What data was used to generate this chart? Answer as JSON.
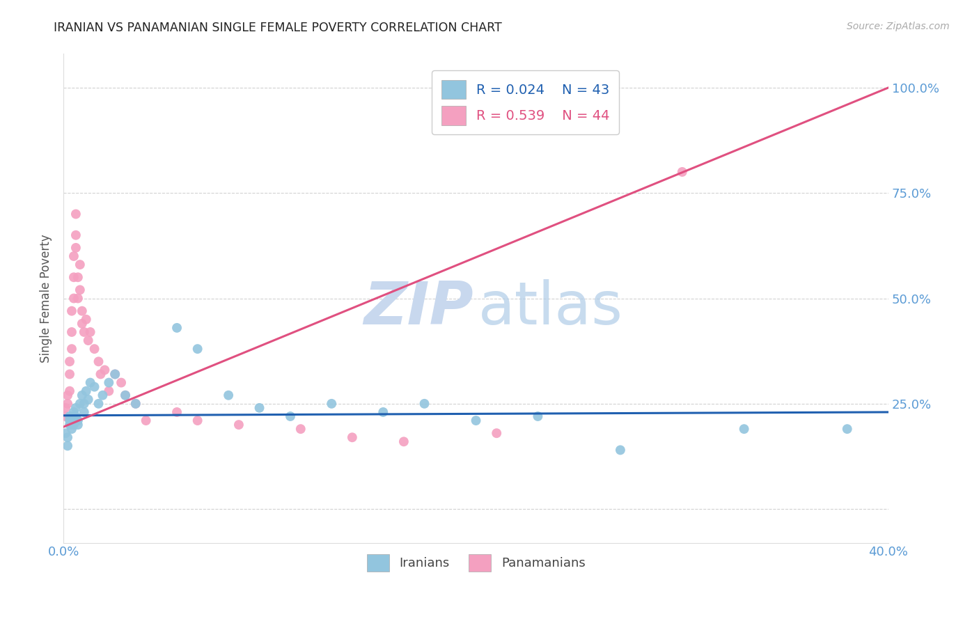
{
  "title": "IRANIAN VS PANAMANIAN SINGLE FEMALE POVERTY CORRELATION CHART",
  "source": "Source: ZipAtlas.com",
  "ylabel": "Single Female Poverty",
  "legend_blue_R": "R = 0.024",
  "legend_blue_N": "N = 43",
  "legend_pink_R": "R = 0.539",
  "legend_pink_N": "N = 44",
  "blue_color": "#92c5de",
  "pink_color": "#f4a0c0",
  "blue_line_color": "#2060b0",
  "pink_line_color": "#e05080",
  "title_color": "#222222",
  "source_color": "#aaaaaa",
  "axis_label_color": "#5b9bd5",
  "right_tick_color": "#5b9bd5",
  "watermark_zip_color": "#c8d8ee",
  "watermark_atlas_color": "#b0cce8",
  "grid_color": "#cccccc",
  "xmin": 0.0,
  "xmax": 0.4,
  "ymin": -0.08,
  "ymax": 1.08,
  "iranians_x": [
    0.001,
    0.002,
    0.002,
    0.003,
    0.003,
    0.003,
    0.004,
    0.004,
    0.004,
    0.005,
    0.005,
    0.005,
    0.006,
    0.006,
    0.007,
    0.007,
    0.008,
    0.009,
    0.01,
    0.01,
    0.011,
    0.012,
    0.013,
    0.015,
    0.017,
    0.019,
    0.022,
    0.025,
    0.03,
    0.035,
    0.055,
    0.065,
    0.08,
    0.095,
    0.11,
    0.13,
    0.155,
    0.175,
    0.2,
    0.23,
    0.27,
    0.33,
    0.38
  ],
  "iranians_y": [
    0.18,
    0.15,
    0.17,
    0.2,
    0.21,
    0.22,
    0.19,
    0.2,
    0.22,
    0.21,
    0.23,
    0.2,
    0.22,
    0.24,
    0.2,
    0.21,
    0.25,
    0.27,
    0.23,
    0.25,
    0.28,
    0.26,
    0.3,
    0.29,
    0.25,
    0.27,
    0.3,
    0.32,
    0.27,
    0.25,
    0.43,
    0.38,
    0.27,
    0.24,
    0.22,
    0.25,
    0.23,
    0.25,
    0.21,
    0.22,
    0.14,
    0.19,
    0.19
  ],
  "panamanians_x": [
    0.001,
    0.001,
    0.002,
    0.002,
    0.003,
    0.003,
    0.003,
    0.004,
    0.004,
    0.004,
    0.005,
    0.005,
    0.005,
    0.006,
    0.006,
    0.006,
    0.007,
    0.007,
    0.008,
    0.008,
    0.009,
    0.009,
    0.01,
    0.011,
    0.012,
    0.013,
    0.015,
    0.017,
    0.018,
    0.02,
    0.022,
    0.025,
    0.028,
    0.03,
    0.035,
    0.04,
    0.055,
    0.065,
    0.085,
    0.115,
    0.14,
    0.165,
    0.21,
    0.3
  ],
  "panamanians_y": [
    0.22,
    0.24,
    0.25,
    0.27,
    0.28,
    0.32,
    0.35,
    0.38,
    0.42,
    0.47,
    0.5,
    0.55,
    0.6,
    0.65,
    0.7,
    0.62,
    0.55,
    0.5,
    0.58,
    0.52,
    0.47,
    0.44,
    0.42,
    0.45,
    0.4,
    0.42,
    0.38,
    0.35,
    0.32,
    0.33,
    0.28,
    0.32,
    0.3,
    0.27,
    0.25,
    0.21,
    0.23,
    0.21,
    0.2,
    0.19,
    0.17,
    0.16,
    0.18,
    0.8
  ],
  "blue_trend_x": [
    0.0,
    0.4
  ],
  "blue_trend_y": [
    0.222,
    0.23
  ],
  "pink_trend_x": [
    0.0,
    0.4
  ],
  "pink_trend_y": [
    0.195,
    1.0
  ]
}
